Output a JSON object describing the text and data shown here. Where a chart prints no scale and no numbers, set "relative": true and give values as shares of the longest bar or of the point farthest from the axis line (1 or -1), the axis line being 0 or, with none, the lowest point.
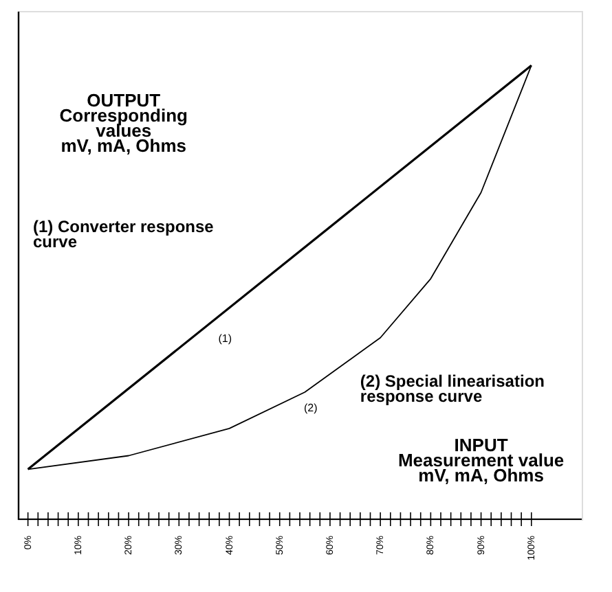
{
  "chart_data": {
    "type": "line",
    "relative": true,
    "xlabel": "INPUT\nMeasurement value\nmV, mA, Ohms",
    "ylabel": "OUTPUT\nCorresponding\nvalues\nmV, mA, Ohms",
    "xlim": [
      -2,
      110
    ],
    "xticks": [
      {
        "value": 0,
        "label": "0%"
      },
      {
        "value": 2,
        "label": null
      },
      {
        "value": 4,
        "label": null
      },
      {
        "value": 6,
        "label": null
      },
      {
        "value": 8,
        "label": null
      },
      {
        "value": 10,
        "label": "10%"
      },
      {
        "value": 12,
        "label": null
      },
      {
        "value": 14,
        "label": null
      },
      {
        "value": 16,
        "label": null
      },
      {
        "value": 18,
        "label": null
      },
      {
        "value": 20,
        "label": "20%"
      },
      {
        "value": 22,
        "label": null
      },
      {
        "value": 24,
        "label": null
      },
      {
        "value": 26,
        "label": null
      },
      {
        "value": 28,
        "label": null
      },
      {
        "value": 30,
        "label": "30%"
      },
      {
        "value": 32,
        "label": null
      },
      {
        "value": 34,
        "label": null
      },
      {
        "value": 36,
        "label": null
      },
      {
        "value": 38,
        "label": null
      },
      {
        "value": 40,
        "label": "40%"
      },
      {
        "value": 42,
        "label": null
      },
      {
        "value": 44,
        "label": null
      },
      {
        "value": 46,
        "label": null
      },
      {
        "value": 48,
        "label": null
      },
      {
        "value": 50,
        "label": "50%"
      },
      {
        "value": 52,
        "label": null
      },
      {
        "value": 54,
        "label": null
      },
      {
        "value": 56,
        "label": null
      },
      {
        "value": 58,
        "label": null
      },
      {
        "value": 60,
        "label": "60%"
      },
      {
        "value": 62,
        "label": null
      },
      {
        "value": 64,
        "label": null
      },
      {
        "value": 66,
        "label": null
      },
      {
        "value": 68,
        "label": null
      },
      {
        "value": 70,
        "label": "70%"
      },
      {
        "value": 72,
        "label": null
      },
      {
        "value": 74,
        "label": null
      },
      {
        "value": 76,
        "label": null
      },
      {
        "value": 78,
        "label": null
      },
      {
        "value": 80,
        "label": "80%"
      },
      {
        "value": 82,
        "label": null
      },
      {
        "value": 84,
        "label": null
      },
      {
        "value": 86,
        "label": null
      },
      {
        "value": 88,
        "label": null
      },
      {
        "value": 90,
        "label": "90%"
      },
      {
        "value": 92,
        "label": null
      },
      {
        "value": 94,
        "label": null
      },
      {
        "value": 96,
        "label": null
      },
      {
        "value": 98,
        "label": null
      },
      {
        "value": 100,
        "label": "100%"
      }
    ],
    "series": [
      {
        "name": "(1)",
        "color": "#000000",
        "x": [
          0,
          100
        ],
        "values": [
          0.11,
          1.0
        ]
      },
      {
        "name": "(2)",
        "color": "#000000",
        "x": [
          0,
          20,
          40,
          55,
          70,
          80,
          90,
          100
        ],
        "values": [
          0.11,
          0.14,
          0.2,
          0.28,
          0.4,
          0.53,
          0.72,
          1.0
        ]
      }
    ],
    "annotations": [
      "(1) Converter response\ncurve",
      "(2) Special linearisation\nresponse curve"
    ],
    "grid": false,
    "marker": "none",
    "line_style": "solid"
  }
}
